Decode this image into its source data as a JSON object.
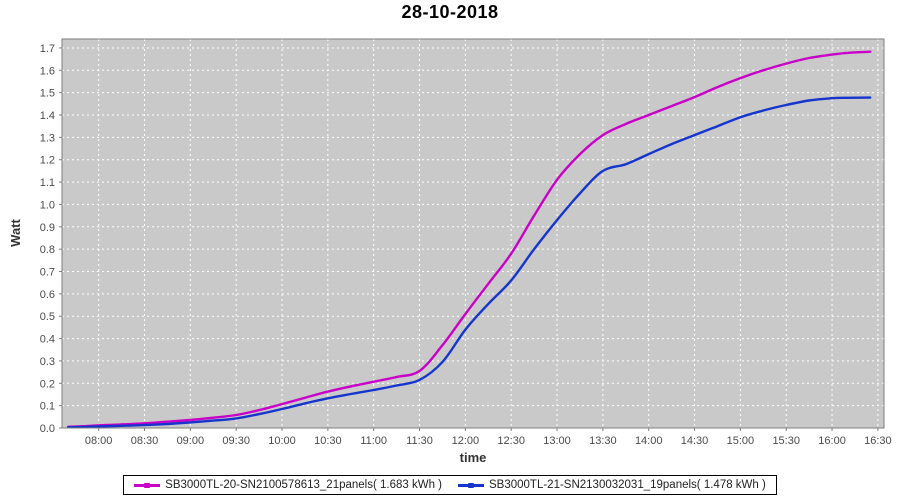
{
  "chart_data": {
    "type": "line",
    "title": "28-10-2018",
    "xlabel": "time",
    "ylabel": "Watt",
    "x_ticks": [
      "08:00",
      "08:30",
      "09:00",
      "09:30",
      "10:00",
      "10:30",
      "11:00",
      "11:30",
      "12:00",
      "12:30",
      "13:00",
      "13:30",
      "14:00",
      "14:30",
      "15:00",
      "15:30",
      "16:00",
      "16:30"
    ],
    "y_ticks": [
      "0.0",
      "0.1",
      "0.2",
      "0.3",
      "0.4",
      "0.5",
      "0.6",
      "0.7",
      "0.8",
      "0.9",
      "1.0",
      "1.1",
      "1.2",
      "1.3",
      "1.4",
      "1.5",
      "1.6",
      "1.7"
    ],
    "xlim": [
      "07:36",
      "16:34"
    ],
    "ylim": [
      0,
      1.74
    ],
    "grid": "on",
    "legend_position": "bottom",
    "colors": {
      "plot_background": "#c9c9c9",
      "gridline": "#ffffff",
      "plot_border": "#7e7e7e",
      "tick": "#7e7e7e"
    },
    "series": [
      {
        "name": "SB3000TL-20-SN2100578613_21panels( 1.683 kWh )",
        "color": "#c800c8",
        "total_kwh": 1.683,
        "points": [
          [
            "07:40",
            0.005
          ],
          [
            "07:50",
            0.008
          ],
          [
            "08:00",
            0.012
          ],
          [
            "08:15",
            0.016
          ],
          [
            "08:30",
            0.021
          ],
          [
            "08:45",
            0.028
          ],
          [
            "09:00",
            0.036
          ],
          [
            "09:15",
            0.046
          ],
          [
            "09:30",
            0.058
          ],
          [
            "09:45",
            0.08
          ],
          [
            "10:00",
            0.107
          ],
          [
            "10:15",
            0.135
          ],
          [
            "10:30",
            0.163
          ],
          [
            "10:45",
            0.186
          ],
          [
            "11:00",
            0.207
          ],
          [
            "11:15",
            0.228
          ],
          [
            "11:30",
            0.255
          ],
          [
            "11:45",
            0.37
          ],
          [
            "12:00",
            0.51
          ],
          [
            "12:15",
            0.645
          ],
          [
            "12:30",
            0.78
          ],
          [
            "12:45",
            0.95
          ],
          [
            "13:00",
            1.11
          ],
          [
            "13:15",
            1.225
          ],
          [
            "13:30",
            1.31
          ],
          [
            "13:45",
            1.36
          ],
          [
            "14:00",
            1.4
          ],
          [
            "14:15",
            1.44
          ],
          [
            "14:30",
            1.48
          ],
          [
            "14:45",
            1.525
          ],
          [
            "15:00",
            1.565
          ],
          [
            "15:15",
            1.6
          ],
          [
            "15:30",
            1.63
          ],
          [
            "15:45",
            1.655
          ],
          [
            "16:00",
            1.67
          ],
          [
            "16:10",
            1.678
          ],
          [
            "16:25",
            1.683
          ]
        ]
      },
      {
        "name": "SB3000TL-21-SN2130032031_19panels( 1.478 kWh )",
        "color": "#1535cd",
        "total_kwh": 1.478,
        "points": [
          [
            "07:40",
            0.003
          ],
          [
            "07:50",
            0.005
          ],
          [
            "08:00",
            0.007
          ],
          [
            "08:15",
            0.01
          ],
          [
            "08:30",
            0.013
          ],
          [
            "08:45",
            0.018
          ],
          [
            "09:00",
            0.025
          ],
          [
            "09:15",
            0.033
          ],
          [
            "09:30",
            0.043
          ],
          [
            "09:45",
            0.062
          ],
          [
            "10:00",
            0.085
          ],
          [
            "10:15",
            0.11
          ],
          [
            "10:30",
            0.133
          ],
          [
            "10:45",
            0.152
          ],
          [
            "11:00",
            0.17
          ],
          [
            "11:15",
            0.19
          ],
          [
            "11:30",
            0.215
          ],
          [
            "11:45",
            0.295
          ],
          [
            "12:00",
            0.44
          ],
          [
            "12:15",
            0.555
          ],
          [
            "12:30",
            0.66
          ],
          [
            "12:45",
            0.8
          ],
          [
            "13:00",
            0.93
          ],
          [
            "13:15",
            1.05
          ],
          [
            "13:30",
            1.15
          ],
          [
            "13:45",
            1.18
          ],
          [
            "14:00",
            1.225
          ],
          [
            "14:15",
            1.27
          ],
          [
            "14:30",
            1.31
          ],
          [
            "14:45",
            1.35
          ],
          [
            "15:00",
            1.39
          ],
          [
            "15:15",
            1.42
          ],
          [
            "15:30",
            1.445
          ],
          [
            "15:45",
            1.465
          ],
          [
            "16:00",
            1.475
          ],
          [
            "16:10",
            1.477
          ],
          [
            "16:25",
            1.478
          ]
        ]
      }
    ]
  }
}
